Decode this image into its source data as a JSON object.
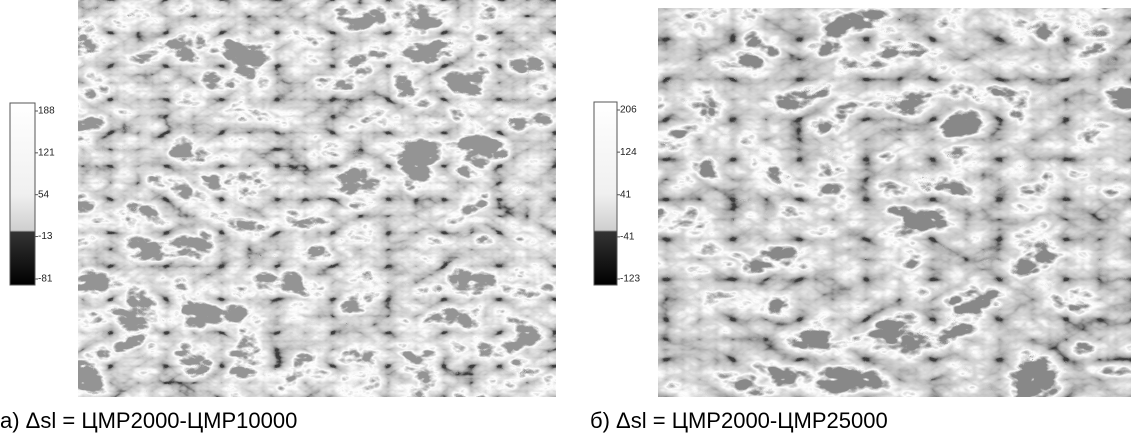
{
  "panels": [
    {
      "caption": "а) Δsl = ЦМР2000-ЦМР10000",
      "colorbar_ticks": [
        188,
        121,
        54,
        -13,
        -81
      ]
    },
    {
      "caption": "б) Δsl = ЦМР2000-ЦМР25000",
      "colorbar_ticks": [
        206,
        124,
        41,
        -41,
        -123
      ]
    }
  ]
}
